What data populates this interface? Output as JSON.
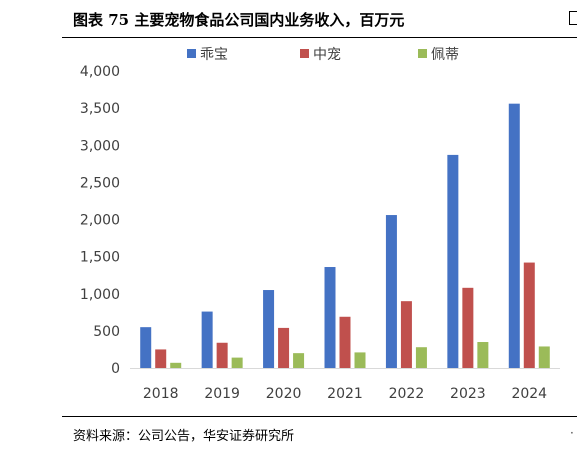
{
  "header": {
    "title": "图表 75  主要宠物食品公司国内业务收入，百万元"
  },
  "footer": {
    "source": "资料来源：公司公告，华安证券研究所"
  },
  "colors": {
    "series1": "#4472C4",
    "series2": "#C0504D",
    "series3": "#9BBB59",
    "axis": "#D9D9D9"
  },
  "chart_data": {
    "type": "bar",
    "title": "",
    "xlabel": "",
    "ylabel": "",
    "categories": [
      "2018",
      "2019",
      "2020",
      "2021",
      "2022",
      "2023",
      "2024"
    ],
    "series": [
      {
        "name": "乖宝",
        "values": [
          550,
          760,
          1050,
          1360,
          2060,
          2870,
          3560
        ]
      },
      {
        "name": "中宠",
        "values": [
          250,
          340,
          540,
          690,
          900,
          1080,
          1420
        ]
      },
      {
        "name": "佩蒂",
        "values": [
          70,
          140,
          200,
          210,
          280,
          350,
          290
        ]
      }
    ],
    "ylim": [
      0,
      4000
    ],
    "yticks": [
      "0",
      "500",
      "1,000",
      "1,500",
      "2,000",
      "2,500",
      "3,000",
      "3,500",
      "4,000"
    ],
    "legend_position": "top",
    "grid": false
  }
}
